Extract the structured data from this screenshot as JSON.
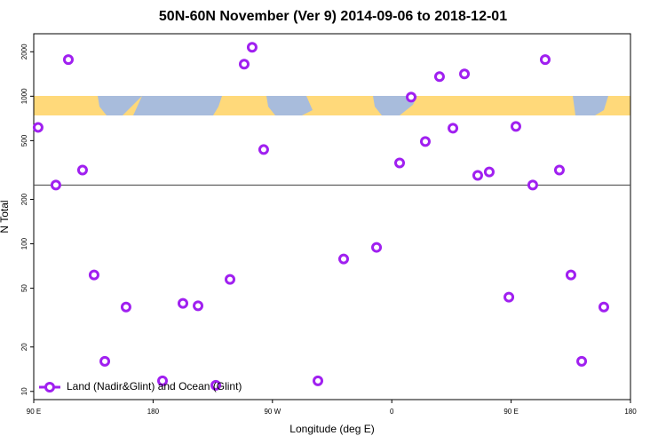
{
  "chart_data": {
    "type": "scatter",
    "title": "50N-60N November (Ver 9)   2014-09-06 to 2018-12-01",
    "xlabel": "Longitude (deg E)",
    "ylabel": "N Total",
    "xlim": [
      90,
      540
    ],
    "xticks": [
      {
        "value": 90,
        "label": "90 E"
      },
      180,
      {
        "value": 270,
        "label": "90 W"
      },
      {
        "value": 360,
        "label": "0"
      },
      {
        "value": 450,
        "label": "90 E"
      },
      {
        "value": 540,
        "label": "180"
      }
    ],
    "ylim": [
      8.8,
      2650
    ],
    "yticks": [
      10,
      20,
      50,
      100,
      200,
      500,
      1000,
      2000
    ],
    "log_y": true,
    "hline": 250,
    "legend": "lower left",
    "series": [
      {
        "name": "Land (Nadir&Glint) and Ocean (Glint)",
        "color": "#a020f0",
        "x": [
          93.3,
          106.7,
          116.1,
          126.8,
          135.5,
          143.6,
          159.6,
          187.1,
          202.5,
          213.9,
          227.3,
          238.0,
          248.7,
          254.7,
          263.4,
          304.3,
          323.7,
          348.5,
          365.9,
          374.6,
          385.3,
          396.0,
          406.1,
          414.8,
          424.8,
          433.5,
          448.3,
          453.6,
          466.3,
          475.7,
          486.4,
          495.1,
          503.2,
          519.9
        ],
        "values": [
          615,
          250,
          1770,
          316,
          61.5,
          16,
          37.3,
          11.8,
          39.5,
          38,
          11,
          57.4,
          1650,
          2145,
          435,
          11.8,
          79,
          94.6,
          353,
          986,
          493,
          1357,
          607,
          1415,
          291,
          307,
          43.5,
          624,
          250,
          1770,
          316,
          61.5,
          16,
          37.3
        ]
      }
    ]
  }
}
